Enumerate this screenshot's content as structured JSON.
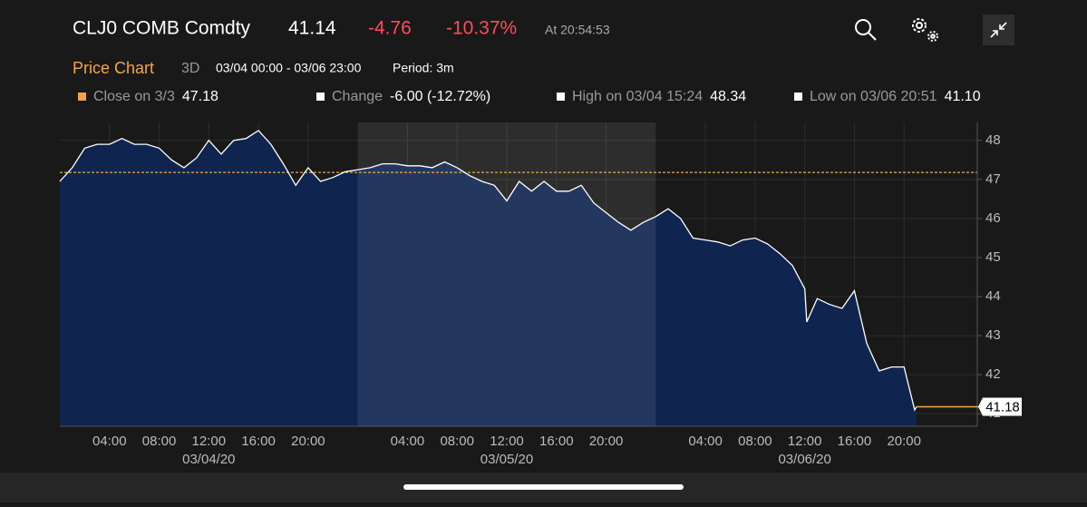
{
  "header": {
    "ticker": "CLJ0 COMB Comdty",
    "price": "41.14",
    "change": "-4.76",
    "change_pct": "-10.37%",
    "time": "At 20:54:53",
    "chart_name": "Price Chart",
    "range": "3D",
    "period_range": "03/04 00:00 - 03/06 23:00",
    "period": "Period: 3m"
  },
  "legend": [
    {
      "label": "Close on 3/3",
      "value": "47.18"
    },
    {
      "label": "Change",
      "value": "-6.00 (-12.72%)"
    },
    {
      "label": "High on 03/04 15:24",
      "value": "48.34"
    },
    {
      "label": "Low on 03/06 20:51",
      "value": "41.10"
    }
  ],
  "chart_data": {
    "type": "line",
    "line_color": "#ffffff",
    "area_color": "#0f2550",
    "reference_line": 47.18,
    "reference_color": "#f5a34a",
    "last_value": 41.18,
    "x": [
      "03/04/20 00:00",
      "03/04/20 01:00",
      "03/04/20 02:00",
      "03/04/20 03:00",
      "03/04/20 04:00",
      "03/04/20 05:00",
      "03/04/20 06:00",
      "03/04/20 07:00",
      "03/04/20 08:00",
      "03/04/20 09:00",
      "03/04/20 10:00",
      "03/04/20 11:00",
      "03/04/20 12:00",
      "03/04/20 13:00",
      "03/04/20 14:00",
      "03/04/20 15:00",
      "03/04/20 16:00",
      "03/04/20 17:00",
      "03/04/20 18:00",
      "03/04/20 19:00",
      "03/04/20 20:00",
      "03/04/20 21:00",
      "03/04/20 22:00",
      "03/04/20 23:00",
      "03/05/20 00:00",
      "03/05/20 01:00",
      "03/05/20 02:00",
      "03/05/20 03:00",
      "03/05/20 04:00",
      "03/05/20 05:00",
      "03/05/20 06:00",
      "03/05/20 07:00",
      "03/05/20 08:00",
      "03/05/20 09:00",
      "03/05/20 10:00",
      "03/05/20 11:00",
      "03/05/20 12:00",
      "03/05/20 13:00",
      "03/05/20 14:00",
      "03/05/20 15:00",
      "03/05/20 16:00",
      "03/05/20 17:00",
      "03/05/20 18:00",
      "03/05/20 19:00",
      "03/05/20 20:00",
      "03/05/20 21:00",
      "03/05/20 22:00",
      "03/05/20 23:00",
      "03/06/20 00:00",
      "03/06/20 01:00",
      "03/06/20 02:00",
      "03/06/20 03:00",
      "03/06/20 04:00",
      "03/06/20 05:00",
      "03/06/20 06:00",
      "03/06/20 07:00",
      "03/06/20 08:00",
      "03/06/20 09:00",
      "03/06/20 10:00",
      "03/06/20 11:00",
      "03/06/20 12:00",
      "03/06/20 12:10",
      "03/06/20 13:00",
      "03/06/20 14:00",
      "03/06/20 15:00",
      "03/06/20 16:00",
      "03/06/20 17:00",
      "03/06/20 18:00",
      "03/06/20 19:00",
      "03/06/20 20:00",
      "03/06/20 20:51",
      "03/06/20 21:00"
    ],
    "values": [
      46.95,
      47.3,
      47.8,
      47.9,
      47.9,
      48.05,
      47.9,
      47.9,
      47.8,
      47.5,
      47.3,
      47.55,
      48.0,
      47.65,
      48.0,
      48.05,
      48.25,
      47.9,
      47.4,
      46.85,
      47.3,
      46.95,
      47.05,
      47.2,
      47.25,
      47.3,
      47.4,
      47.4,
      47.35,
      47.35,
      47.3,
      47.45,
      47.3,
      47.1,
      46.95,
      46.85,
      46.45,
      46.95,
      46.7,
      46.95,
      46.7,
      46.7,
      46.85,
      46.4,
      46.15,
      45.9,
      45.7,
      45.9,
      46.05,
      46.25,
      46.0,
      45.5,
      45.45,
      45.4,
      45.3,
      45.45,
      45.5,
      45.35,
      45.1,
      44.8,
      44.2,
      43.35,
      43.95,
      43.8,
      43.7,
      44.15,
      42.8,
      42.1,
      42.2,
      42.2,
      41.1,
      41.18
    ],
    "xlim": [
      "03/04/20 00:00",
      "03/07/20 00:00"
    ],
    "highlight": [
      "03/05/20 00:00",
      "03/06/20 00:00"
    ],
    "ylim": [
      40.68,
      48.46
    ],
    "yticks": [
      41,
      42,
      43,
      44,
      45,
      46,
      47,
      48
    ],
    "xticks": [
      {
        "value": "03/04/20 04:00",
        "label": "04:00"
      },
      {
        "value": "03/04/20 08:00",
        "label": "08:00"
      },
      {
        "value": "03/04/20 12:00",
        "label": "12:00"
      },
      {
        "value": "03/04/20 16:00",
        "label": "16:00"
      },
      {
        "value": "03/04/20 20:00",
        "label": "20:00"
      },
      {
        "value": "03/05/20 04:00",
        "label": "04:00"
      },
      {
        "value": "03/05/20 08:00",
        "label": "08:00"
      },
      {
        "value": "03/05/20 12:00",
        "label": "12:00"
      },
      {
        "value": "03/05/20 16:00",
        "label": "16:00"
      },
      {
        "value": "03/05/20 20:00",
        "label": "20:00"
      },
      {
        "value": "03/06/20 04:00",
        "label": "04:00"
      },
      {
        "value": "03/06/20 08:00",
        "label": "08:00"
      },
      {
        "value": "03/06/20 12:00",
        "label": "12:00"
      },
      {
        "value": "03/06/20 16:00",
        "label": "16:00"
      },
      {
        "value": "03/06/20 20:00",
        "label": "20:00"
      }
    ],
    "date_labels": [
      {
        "value": "03/04/20 12:00",
        "label": "03/04/20"
      },
      {
        "value": "03/05/20 12:00",
        "label": "03/05/20"
      },
      {
        "value": "03/06/20 12:00",
        "label": "03/06/20"
      }
    ],
    "grid": true
  }
}
